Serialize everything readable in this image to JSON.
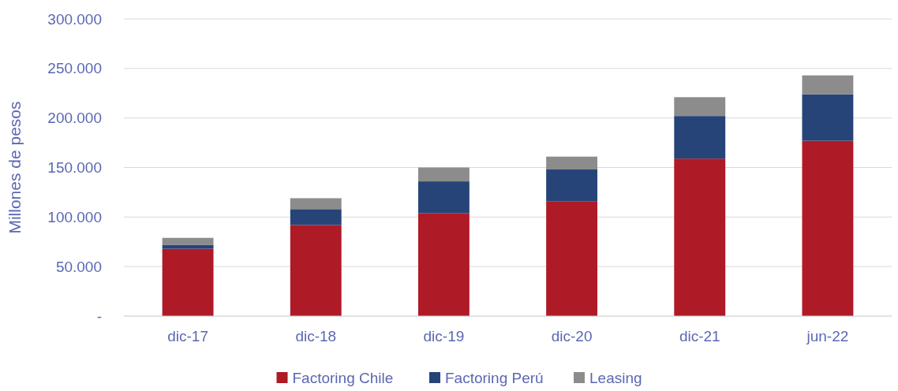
{
  "chart_data": {
    "type": "bar",
    "stacked": true,
    "ylabel": "Millones de pesos",
    "categories": [
      "dic-17",
      "dic-18",
      "dic-19",
      "dic-20",
      "dic-21",
      "jun-22"
    ],
    "series": [
      {
        "name": "Factoring Chile",
        "color": "#ae1a25",
        "values": [
          68000,
          92000,
          104000,
          116000,
          159000,
          177000
        ]
      },
      {
        "name": "Factoring Perú",
        "color": "#264478",
        "values": [
          4000,
          16000,
          32000,
          32000,
          43000,
          47000
        ]
      },
      {
        "name": "Leasing",
        "color": "#8c8c8c",
        "values": [
          7000,
          11000,
          14000,
          13000,
          19000,
          19000
        ]
      }
    ],
    "ylim": [
      0,
      300000
    ],
    "yticks": [
      {
        "value": 0,
        "label": "-"
      },
      {
        "value": 50000,
        "label": "50.000"
      },
      {
        "value": 100000,
        "label": "100.000"
      },
      {
        "value": 150000,
        "label": "150.000"
      },
      {
        "value": 200000,
        "label": "200.000"
      },
      {
        "value": 250000,
        "label": "250.000"
      },
      {
        "value": 300000,
        "label": "300.000"
      }
    ],
    "grid": "y",
    "legend": "bottom"
  }
}
